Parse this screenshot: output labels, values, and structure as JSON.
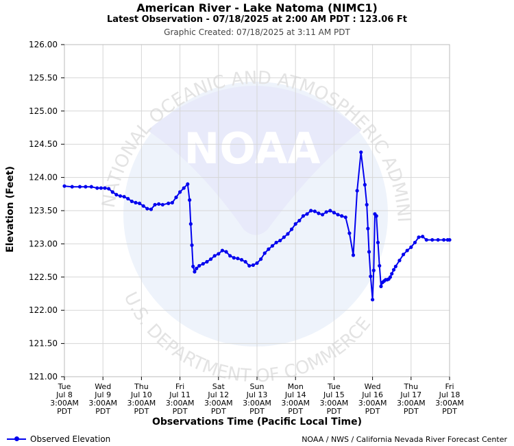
{
  "header": {
    "title": "American River - Lake Natoma (NIMC1)",
    "subtitle": "Latest Observation - 07/18/2025 at 2:00 AM PDT : 123.06 Ft",
    "created": "Graphic Created: 07/18/2025 at 3:11 AM PDT"
  },
  "footer": {
    "legend_label": "Observed Elevation",
    "credit": "NOAA / NWS / California Nevada River Forecast Center"
  },
  "watermark": {
    "logo_text": "NOAA",
    "ring_top": "NATIONAL OCEANIC AND ATMOSPHERIC ADMINISTRATION",
    "ring_bottom": "U.S. DEPARTMENT OF COMMERCE"
  },
  "colors": {
    "series": "#0000ee",
    "grid": "#d6d6d6",
    "watermark": "#e8eafa"
  },
  "chart_data": {
    "type": "line",
    "xlabel": "Observations Time (Pacific Local Time)",
    "ylabel": "Elevation (Feet)",
    "ylim": [
      121.0,
      126.0
    ],
    "xlim": [
      0,
      10
    ],
    "grid": true,
    "legend_position": "bottom-left",
    "y_ticks": [
      "121.00",
      "121.50",
      "122.00",
      "122.50",
      "123.00",
      "123.50",
      "124.00",
      "124.50",
      "125.00",
      "125.50",
      "126.00"
    ],
    "x_ticks": [
      {
        "day": "Tue",
        "date": "Jul 8",
        "time": "3:00AM",
        "tz": "PDT"
      },
      {
        "day": "Wed",
        "date": "Jul 9",
        "time": "3:00AM",
        "tz": "PDT"
      },
      {
        "day": "Thu",
        "date": "Jul 10",
        "time": "3:00AM",
        "tz": "PDT"
      },
      {
        "day": "Fri",
        "date": "Jul 11",
        "time": "3:00AM",
        "tz": "PDT"
      },
      {
        "day": "Sat",
        "date": "Jul 12",
        "time": "3:00AM",
        "tz": "PDT"
      },
      {
        "day": "Sun",
        "date": "Jul 13",
        "time": "3:00AM",
        "tz": "PDT"
      },
      {
        "day": "Mon",
        "date": "Jul 14",
        "time": "3:00AM",
        "tz": "PDT"
      },
      {
        "day": "Tue",
        "date": "Jul 15",
        "time": "3:00AM",
        "tz": "PDT"
      },
      {
        "day": "Wed",
        "date": "Jul 16",
        "time": "3:00AM",
        "tz": "PDT"
      },
      {
        "day": "Thu",
        "date": "Jul 17",
        "time": "3:00AM",
        "tz": "PDT"
      },
      {
        "day": "Fri",
        "date": "Jul 18",
        "time": "3:00AM",
        "tz": "PDT"
      }
    ],
    "series": [
      {
        "name": "Observed Elevation",
        "x": [
          0.0,
          0.2,
          0.4,
          0.55,
          0.7,
          0.85,
          0.95,
          1.05,
          1.15,
          1.25,
          1.35,
          1.45,
          1.55,
          1.65,
          1.75,
          1.85,
          1.95,
          2.05,
          2.15,
          2.25,
          2.35,
          2.45,
          2.55,
          2.7,
          2.8,
          2.9,
          3.0,
          3.1,
          3.2,
          3.25,
          3.28,
          3.31,
          3.34,
          3.38,
          3.43,
          3.5,
          3.6,
          3.7,
          3.8,
          3.9,
          4.0,
          4.1,
          4.2,
          4.3,
          4.4,
          4.5,
          4.6,
          4.7,
          4.8,
          4.9,
          5.0,
          5.1,
          5.2,
          5.3,
          5.4,
          5.5,
          5.6,
          5.7,
          5.8,
          5.9,
          6.0,
          6.1,
          6.2,
          6.3,
          6.4,
          6.5,
          6.6,
          6.7,
          6.8,
          6.9,
          7.0,
          7.1,
          7.2,
          7.3,
          7.4,
          7.5,
          7.6,
          7.7,
          7.8,
          7.85,
          7.88,
          7.91,
          7.95,
          8.0,
          8.03,
          8.06,
          8.1,
          8.14,
          8.18,
          8.22,
          8.26,
          8.3,
          8.34,
          8.38,
          8.42,
          8.46,
          8.5,
          8.55,
          8.6,
          8.7,
          8.8,
          8.9,
          9.0,
          9.1,
          9.2,
          9.3,
          9.4,
          9.55,
          9.7,
          9.85,
          9.95,
          10.0
        ],
        "y": [
          123.87,
          123.86,
          123.86,
          123.86,
          123.86,
          123.84,
          123.84,
          123.84,
          123.83,
          123.78,
          123.74,
          123.72,
          123.71,
          123.68,
          123.64,
          123.62,
          123.61,
          123.57,
          123.53,
          123.52,
          123.59,
          123.6,
          123.59,
          123.61,
          123.62,
          123.7,
          123.78,
          123.84,
          123.9,
          123.66,
          123.3,
          122.98,
          122.66,
          122.58,
          122.63,
          122.67,
          122.7,
          122.73,
          122.77,
          122.82,
          122.85,
          122.9,
          122.88,
          122.82,
          122.79,
          122.78,
          122.76,
          122.73,
          122.67,
          122.68,
          122.71,
          122.77,
          122.86,
          122.92,
          122.97,
          123.02,
          123.05,
          123.1,
          123.15,
          123.22,
          123.3,
          123.35,
          123.42,
          123.45,
          123.5,
          123.49,
          123.46,
          123.44,
          123.48,
          123.5,
          123.47,
          123.44,
          123.42,
          123.4,
          123.16,
          122.83,
          123.8,
          124.38,
          123.89,
          123.59,
          123.23,
          122.88,
          122.51,
          122.16,
          122.6,
          123.45,
          123.42,
          123.02,
          122.67,
          122.36,
          122.42,
          122.44,
          122.46,
          122.46,
          122.47,
          122.5,
          122.55,
          122.61,
          122.66,
          122.75,
          122.84,
          122.9,
          122.95,
          123.02,
          123.1,
          123.11,
          123.06,
          123.06,
          123.06,
          123.06,
          123.06,
          123.06
        ]
      }
    ]
  }
}
